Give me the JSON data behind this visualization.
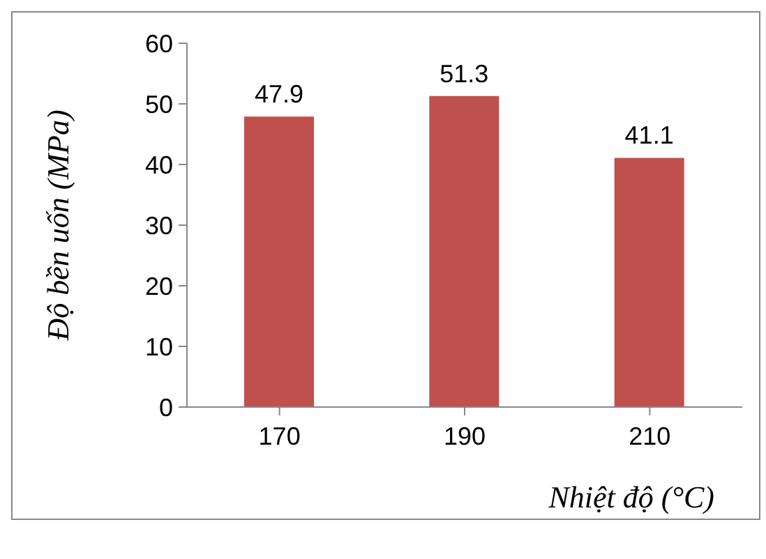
{
  "chart_data": {
    "type": "bar",
    "xlabel": "Nhiệt độ (°C)",
    "ylabel": "Độ bền uốn (MPa)",
    "categories": [
      "170",
      "190",
      "210"
    ],
    "values": [
      47.9,
      51.3,
      41.1
    ],
    "color": "#c0504d",
    "ylim": [
      0,
      60
    ],
    "yticks": [
      0,
      10,
      20,
      30,
      40,
      50,
      60
    ],
    "data_labels": true,
    "grid": false,
    "legend": false
  }
}
